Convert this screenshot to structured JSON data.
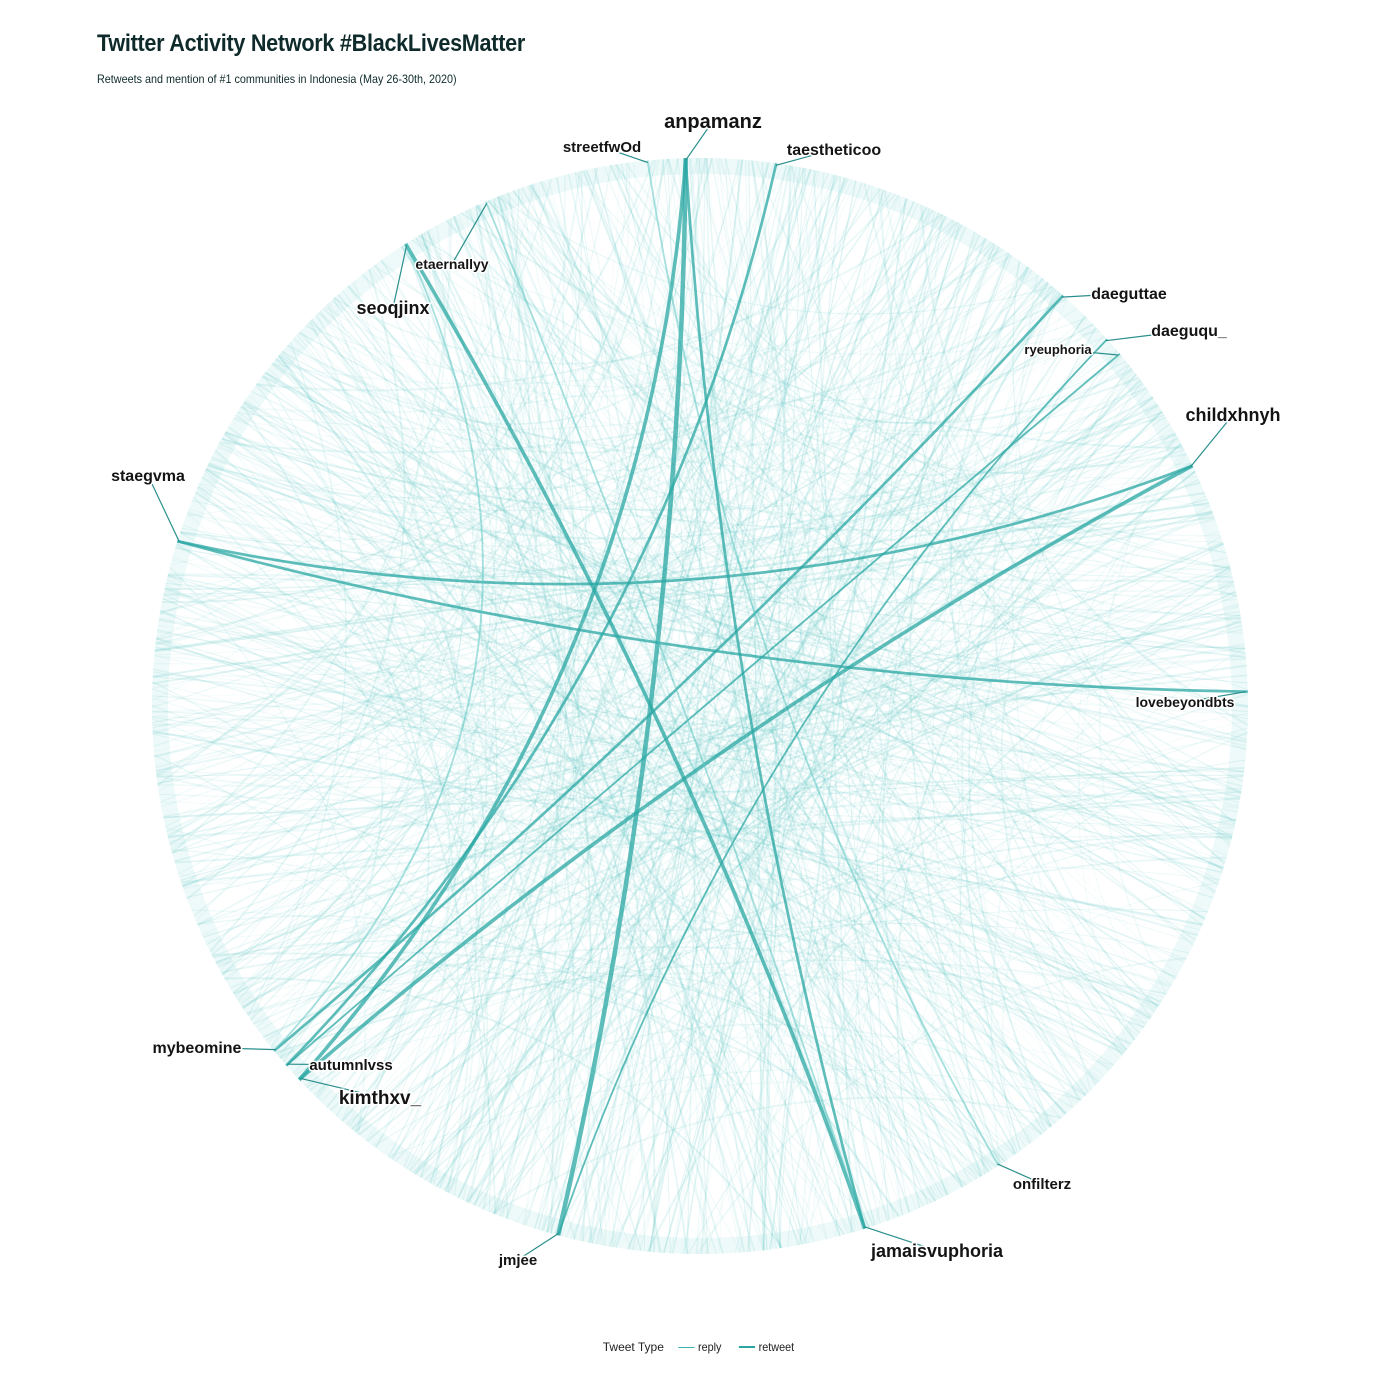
{
  "title": "Twitter Activity Network #BlackLivesMatter",
  "subtitle": "Retweets and mention of #1 communities in Indonesia (May 26-30th, 2020)",
  "colors": {
    "edge": "#5cc6c3",
    "edge_strong": "#2aa7a3",
    "label": "#141414",
    "leader": "#2a8f8c"
  },
  "legend": {
    "title": "Tweet Type",
    "items": [
      {
        "label": "reply",
        "color": "#5cc6c3"
      },
      {
        "label": "retweet",
        "color": "#2aa7a3"
      }
    ]
  },
  "nodes": [
    {
      "id": "anpamanz",
      "label": "anpamanz",
      "size": "large"
    },
    {
      "id": "streetfwOd",
      "label": "streetfwOd",
      "size": "medium"
    },
    {
      "id": "taestheticoo",
      "label": "taestheticoo",
      "size": "medium"
    },
    {
      "id": "etaernallyy",
      "label": "etaernallyy",
      "size": "small"
    },
    {
      "id": "seoqjinx",
      "label": "seoqjinx",
      "size": "large"
    },
    {
      "id": "daeguttae",
      "label": "daeguttae",
      "size": "medium"
    },
    {
      "id": "daeguqu_",
      "label": "daeguqu_",
      "size": "medium"
    },
    {
      "id": "ryeuphoria",
      "label": "ryeuphoria",
      "size": "small"
    },
    {
      "id": "childxhnyh",
      "label": "childxhnyh",
      "size": "large"
    },
    {
      "id": "staegvma",
      "label": "staegvma",
      "size": "medium"
    },
    {
      "id": "lovebeyondbts",
      "label": "lovebeyondbts",
      "size": "small"
    },
    {
      "id": "mybeomine",
      "label": "mybeomine",
      "size": "medium"
    },
    {
      "id": "autumnlvss",
      "label": "autumnlvss",
      "size": "small"
    },
    {
      "id": "kimthxv_",
      "label": "kimthxv_",
      "size": "large"
    },
    {
      "id": "onfilterz",
      "label": "onfilterz",
      "size": "small"
    },
    {
      "id": "jamaisvuphoria",
      "label": "jamaisvuphoria",
      "size": "large"
    },
    {
      "id": "jmjee",
      "label": "jmjee",
      "size": "medium"
    }
  ],
  "hub_edges": [
    {
      "from": "anpamanz",
      "to": "jmjee",
      "type": "retweet",
      "weight": 5
    },
    {
      "from": "anpamanz",
      "to": "kimthxv_",
      "type": "retweet",
      "weight": 4
    },
    {
      "from": "seoqjinx",
      "to": "jamaisvuphoria",
      "type": "retweet",
      "weight": 4
    },
    {
      "from": "childxhnyh",
      "to": "staegvma",
      "type": "retweet",
      "weight": 3
    },
    {
      "from": "staegvma",
      "to": "lovebeyondbts",
      "type": "retweet",
      "weight": 3
    },
    {
      "from": "daeguttae",
      "to": "mybeomine",
      "type": "retweet",
      "weight": 3
    },
    {
      "from": "streetfwOd",
      "to": "onfilterz",
      "type": "reply",
      "weight": 2
    },
    {
      "from": "taestheticoo",
      "to": "autumnlvss",
      "type": "retweet",
      "weight": 3
    },
    {
      "from": "kimthxv_",
      "to": "childxhnyh",
      "type": "retweet",
      "weight": 4
    },
    {
      "from": "mybeomine",
      "to": "seoqjinx",
      "type": "reply",
      "weight": 2
    },
    {
      "from": "jmjee",
      "to": "daeguqu_",
      "type": "retweet",
      "weight": 2
    },
    {
      "from": "autumnlvss",
      "to": "ryeuphoria",
      "type": "retweet",
      "weight": 2
    },
    {
      "from": "etaernallyy",
      "to": "jamaisvuphoria",
      "type": "reply",
      "weight": 2
    },
    {
      "from": "jamaisvuphoria",
      "to": "anpamanz",
      "type": "retweet",
      "weight": 3
    }
  ]
}
